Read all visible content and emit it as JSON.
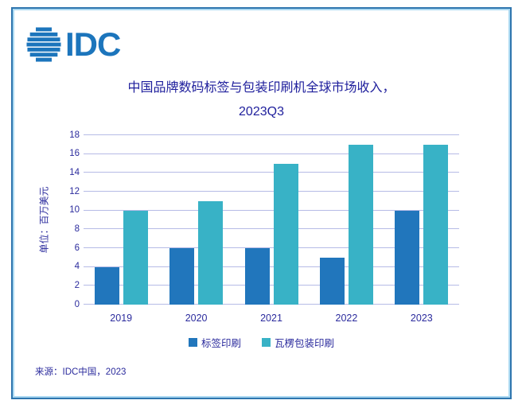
{
  "logo": {
    "text": "IDC",
    "color": "#1C75BC"
  },
  "title": {
    "line1": "中国品牌数码标签与包装印刷机全球市场收入，",
    "line2": "2023Q3"
  },
  "source": "来源：IDC中国，2023",
  "colors": {
    "title_text": "#1E1E9C",
    "axis_text": "#2B2B9D",
    "gridline": "#B6BBE6",
    "border_outer": "#2E75AE",
    "border_inner": "#ABD9F2",
    "series_label": "#2176BC",
    "series_corrugated": "#38B2C6"
  },
  "chart_data": {
    "type": "bar",
    "title": "中国品牌数码标签与包装印刷机全球市场收入，2023Q3",
    "categories": [
      "2019",
      "2020",
      "2021",
      "2022",
      "2023"
    ],
    "series": [
      {
        "name": "标签印刷",
        "color": "#2176BC",
        "values": [
          4,
          6,
          6,
          5,
          10
        ]
      },
      {
        "name": "瓦楞包装印刷",
        "color": "#38B2C6",
        "values": [
          10,
          11,
          15,
          17,
          17
        ]
      }
    ],
    "xlabel": "",
    "ylabel": "单位：百万美元",
    "ylim": [
      0,
      18
    ],
    "ytick_step": 2,
    "grid": true,
    "legend_position": "bottom"
  }
}
